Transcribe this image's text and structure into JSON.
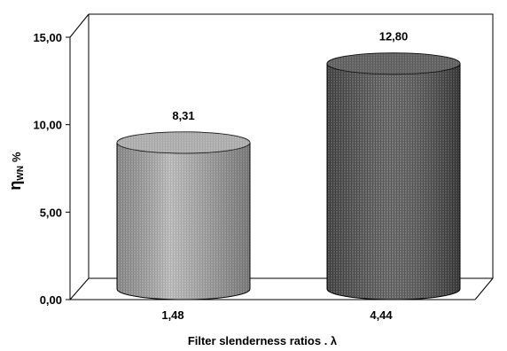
{
  "chart_data": {
    "type": "bar",
    "style": "3d-cylinder",
    "categories": [
      "1,48",
      "4,44"
    ],
    "values": [
      8.31,
      12.8
    ],
    "value_labels": [
      "8,31",
      "12,80"
    ],
    "series_colors": [
      "#a9a9a9",
      "#5e5e5e"
    ],
    "title": "",
    "xlabel": "Filter slenderness ratios . λ",
    "ylabel": {
      "main": "η",
      "subscript": "WN",
      "unit": "%"
    },
    "ylim": [
      0,
      15
    ],
    "yticks": [
      "0,00",
      "5,00",
      "10,00",
      "15,00"
    ],
    "ytick_values": [
      0,
      5,
      10,
      15
    ],
    "grid": false,
    "legend": "none"
  }
}
